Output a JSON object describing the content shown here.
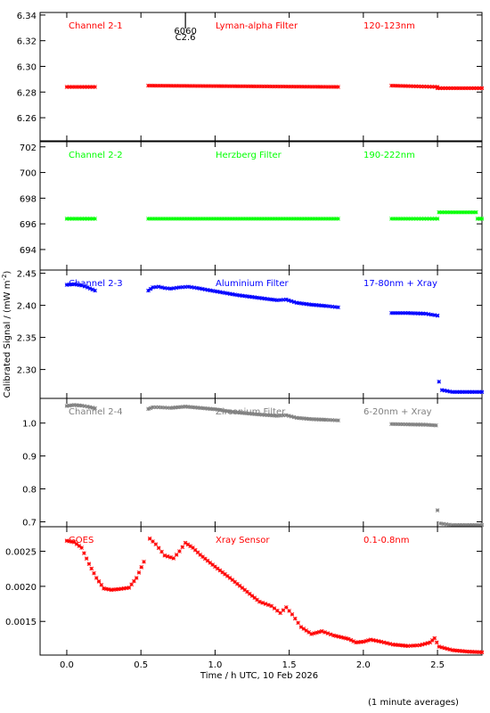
{
  "chart_data": [
    {
      "type": "scatter",
      "panel_labels": {
        "channel": "Channel 2-1",
        "filter": "Lyman-alpha Filter",
        "band": "120-123nm"
      },
      "color": "#ff0000",
      "ylim": [
        6.242,
        6.342
      ],
      "yticks": [
        6.26,
        6.28,
        6.3,
        6.32,
        6.34
      ],
      "ytick_labels": [
        "6.26",
        "6.28",
        "6.30",
        "6.32",
        "6.34"
      ],
      "annotation": {
        "x": 0.8,
        "text_top": "6060",
        "text_bottom": "C2.6"
      },
      "series": [
        {
          "segments": [
            {
              "x0": 0.0,
              "x1": 0.19,
              "y": [
                6.284,
                6.284
              ]
            },
            {
              "x0": 0.55,
              "x1": 1.83,
              "y": [
                6.285,
                6.284
              ]
            },
            {
              "x0": 2.19,
              "x1": 2.5,
              "y": [
                6.285,
                6.284
              ]
            },
            {
              "x0": 2.5,
              "x1": 2.8,
              "y": [
                6.283,
                6.283
              ]
            }
          ]
        }
      ]
    },
    {
      "type": "scatter",
      "panel_labels": {
        "channel": "Channel 2-2",
        "filter": "Herzberg Filter",
        "band": "190-222nm"
      },
      "color": "#00ff00",
      "ylim": [
        692.4,
        702.4
      ],
      "yticks": [
        694,
        696,
        698,
        700,
        702
      ],
      "ytick_labels": [
        "694",
        "696",
        "698",
        "700",
        "702"
      ],
      "series": [
        {
          "segments": [
            {
              "x0": 0.0,
              "x1": 0.19,
              "y": [
                696.4,
                696.4
              ]
            },
            {
              "x0": 0.55,
              "x1": 1.83,
              "y": [
                696.4,
                696.4
              ]
            },
            {
              "x0": 2.19,
              "x1": 2.5,
              "y": [
                696.4,
                696.4
              ]
            },
            {
              "x0": 2.51,
              "x1": 2.76,
              "y": [
                696.9,
                696.9
              ]
            },
            {
              "x0": 2.77,
              "x1": 2.8,
              "y": [
                696.4,
                696.4
              ]
            }
          ]
        }
      ]
    },
    {
      "type": "scatter",
      "panel_labels": {
        "channel": "Channel 2-3",
        "filter": "Aluminium Filter",
        "band": "17-80nm + Xray"
      },
      "color": "#0000ff",
      "ylim": [
        2.255,
        2.455
      ],
      "yticks": [
        2.3,
        2.35,
        2.4,
        2.45
      ],
      "ytick_labels": [
        "2.30",
        "2.35",
        "2.40",
        "2.45"
      ],
      "series": [
        {
          "points": [
            [
              0.0,
              2.432
            ],
            [
              0.05,
              2.433
            ],
            [
              0.1,
              2.431
            ],
            [
              0.14,
              2.428
            ],
            [
              0.19,
              2.423
            ],
            [
              0.55,
              2.423
            ],
            [
              0.58,
              2.428
            ],
            [
              0.62,
              2.429
            ],
            [
              0.66,
              2.427
            ],
            [
              0.7,
              2.426
            ],
            [
              0.76,
              2.428
            ],
            [
              0.82,
              2.429
            ],
            [
              0.88,
              2.427
            ],
            [
              0.95,
              2.424
            ],
            [
              1.05,
              2.42
            ],
            [
              1.15,
              2.416
            ],
            [
              1.25,
              2.413
            ],
            [
              1.35,
              2.41
            ],
            [
              1.42,
              2.408
            ],
            [
              1.48,
              2.409
            ],
            [
              1.55,
              2.404
            ],
            [
              1.65,
              2.401
            ],
            [
              1.75,
              2.399
            ],
            [
              1.83,
              2.397
            ],
            [
              2.19,
              2.388
            ],
            [
              2.3,
              2.388
            ],
            [
              2.42,
              2.387
            ],
            [
              2.5,
              2.384
            ],
            [
              2.51,
              2.281
            ],
            [
              2.53,
              2.268
            ],
            [
              2.6,
              2.265
            ],
            [
              2.7,
              2.265
            ],
            [
              2.8,
              2.265
            ]
          ]
        }
      ]
    },
    {
      "type": "scatter",
      "panel_labels": {
        "channel": "Channel 2-4",
        "filter": "Zirconium Filter",
        "band": "6-20nm + Xray"
      },
      "color": "#808080",
      "ylim": [
        0.685,
        1.075
      ],
      "yticks": [
        0.7,
        0.8,
        0.9,
        1.0
      ],
      "ytick_labels": [
        "0.7",
        "0.8",
        "0.9",
        "1.0"
      ],
      "series": [
        {
          "points": [
            [
              0.0,
              1.052
            ],
            [
              0.05,
              1.055
            ],
            [
              0.1,
              1.053
            ],
            [
              0.14,
              1.05
            ],
            [
              0.19,
              1.045
            ],
            [
              0.55,
              1.043
            ],
            [
              0.58,
              1.048
            ],
            [
              0.62,
              1.048
            ],
            [
              0.7,
              1.046
            ],
            [
              0.8,
              1.05
            ],
            [
              0.9,
              1.046
            ],
            [
              1.0,
              1.042
            ],
            [
              1.1,
              1.035
            ],
            [
              1.2,
              1.03
            ],
            [
              1.3,
              1.026
            ],
            [
              1.42,
              1.022
            ],
            [
              1.48,
              1.024
            ],
            [
              1.55,
              1.016
            ],
            [
              1.65,
              1.012
            ],
            [
              1.75,
              1.01
            ],
            [
              1.83,
              1.008
            ],
            [
              2.19,
              0.997
            ],
            [
              2.3,
              0.996
            ],
            [
              2.42,
              0.995
            ],
            [
              2.49,
              0.993
            ],
            [
              2.5,
              0.735
            ],
            [
              2.52,
              0.695
            ],
            [
              2.6,
              0.69
            ],
            [
              2.7,
              0.69
            ],
            [
              2.8,
              0.69
            ]
          ]
        }
      ]
    },
    {
      "type": "scatter",
      "panel_labels": {
        "channel": "GOES",
        "filter": "Xray Sensor",
        "band": "0.1-0.8nm"
      },
      "color": "#ff0000",
      "ylim": [
        0.00102,
        0.00285
      ],
      "yticks": [
        0.0015,
        0.002,
        0.0025
      ],
      "ytick_labels": [
        "0.0015",
        "0.0020",
        "0.0025"
      ],
      "series": [
        {
          "points": [
            [
              0.0,
              0.00265
            ],
            [
              0.05,
              0.00263
            ],
            [
              0.1,
              0.00255
            ],
            [
              0.15,
              0.00232
            ],
            [
              0.2,
              0.00212
            ],
            [
              0.25,
              0.00197
            ],
            [
              0.3,
              0.00195
            ],
            [
              0.35,
              0.00196
            ],
            [
              0.42,
              0.00198
            ],
            [
              0.47,
              0.00212
            ],
            [
              0.52,
              0.00235
            ],
            [
              0.56,
              0.00268
            ],
            [
              0.6,
              0.0026
            ],
            [
              0.66,
              0.00244
            ],
            [
              0.72,
              0.0024
            ],
            [
              0.76,
              0.0025
            ],
            [
              0.8,
              0.00262
            ],
            [
              0.85,
              0.00255
            ],
            [
              0.9,
              0.00245
            ],
            [
              1.0,
              0.00228
            ],
            [
              1.1,
              0.00212
            ],
            [
              1.2,
              0.00195
            ],
            [
              1.3,
              0.00178
            ],
            [
              1.38,
              0.00172
            ],
            [
              1.44,
              0.00162
            ],
            [
              1.48,
              0.0017
            ],
            [
              1.52,
              0.0016
            ],
            [
              1.58,
              0.00142
            ],
            [
              1.65,
              0.00132
            ],
            [
              1.72,
              0.00136
            ],
            [
              1.8,
              0.0013
            ],
            [
              1.9,
              0.00125
            ],
            [
              1.95,
              0.0012
            ],
            [
              2.0,
              0.00121
            ],
            [
              2.05,
              0.00124
            ],
            [
              2.12,
              0.00121
            ],
            [
              2.2,
              0.00117
            ],
            [
              2.3,
              0.00115
            ],
            [
              2.38,
              0.00116
            ],
            [
              2.45,
              0.0012
            ],
            [
              2.48,
              0.00126
            ],
            [
              2.51,
              0.00114
            ],
            [
              2.6,
              0.00109
            ],
            [
              2.7,
              0.00107
            ],
            [
              2.8,
              0.00106
            ]
          ]
        }
      ]
    }
  ],
  "shared_axis": {
    "xlim": [
      -0.18,
      2.8
    ],
    "xticks": [
      0.0,
      0.5,
      1.0,
      1.5,
      2.0,
      2.5
    ],
    "xtick_labels": [
      "0.0",
      "0.5",
      "1.0",
      "1.5",
      "2.0",
      "2.5"
    ],
    "xlabel": "Time / h UTC, 10 Feb 2026",
    "ylabel": "Calibrated Signal / (mW m",
    "ylabel_sup": "-2",
    "ylabel_end": ")"
  },
  "footer": {
    "note": "(1 minute averages)"
  }
}
